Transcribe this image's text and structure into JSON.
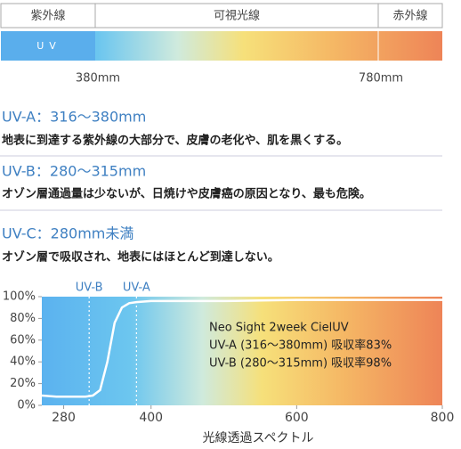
{
  "spectrum": {
    "labels": [
      "紫外線",
      "可視光線",
      "赤外線"
    ],
    "uv": "UV",
    "marks": [
      "380mm",
      "780mm"
    ]
  },
  "sections": [
    {
      "title": "UV-A：316〜380mm",
      "text": "地表に到達する紫外線の大部分で、皮膚の老化や、肌を黒くする。"
    },
    {
      "title": "UV-B：280〜315mm",
      "text": "オゾン層通過量は少ないが、日焼けや皮膚癌の原因となり、最も危険。"
    },
    {
      "title": "UV-C：280mm未満",
      "text": "オゾン層で吸収され、地表にはほとんど到達しない。"
    }
  ],
  "chart_data": {
    "type": "line",
    "xlabel": "光線透過スペクトル",
    "x": [
      250,
      270,
      290,
      300,
      310,
      320,
      330,
      340,
      350,
      360,
      370,
      380,
      400,
      500,
      600,
      700,
      800
    ],
    "values": [
      9,
      8,
      8,
      8,
      8,
      9,
      14,
      40,
      76,
      90,
      94,
      95,
      96,
      96,
      97,
      97,
      97
    ],
    "color": "#ffffff",
    "xlim": [
      250,
      800
    ],
    "xticks": [
      280,
      400,
      600,
      800
    ],
    "ylim": [
      0,
      100
    ],
    "yticks": [
      {
        "value": 0,
        "label": "0%"
      },
      {
        "value": 20,
        "label": "20%"
      },
      {
        "value": 40,
        "label": "40%"
      },
      {
        "value": 60,
        "label": "60%"
      },
      {
        "value": 80,
        "label": "80%"
      },
      {
        "value": 100,
        "label": "100%"
      }
    ],
    "references": [
      {
        "label": "UV-B",
        "x": 315
      },
      {
        "label": "UV-A",
        "x": 380
      }
    ],
    "legend_text": [
      "Neo Sight 2week CielUV",
      "UV-A (316〜380mm) 吸収率83%",
      "UV-B (280〜315mm) 吸収率98%"
    ]
  }
}
